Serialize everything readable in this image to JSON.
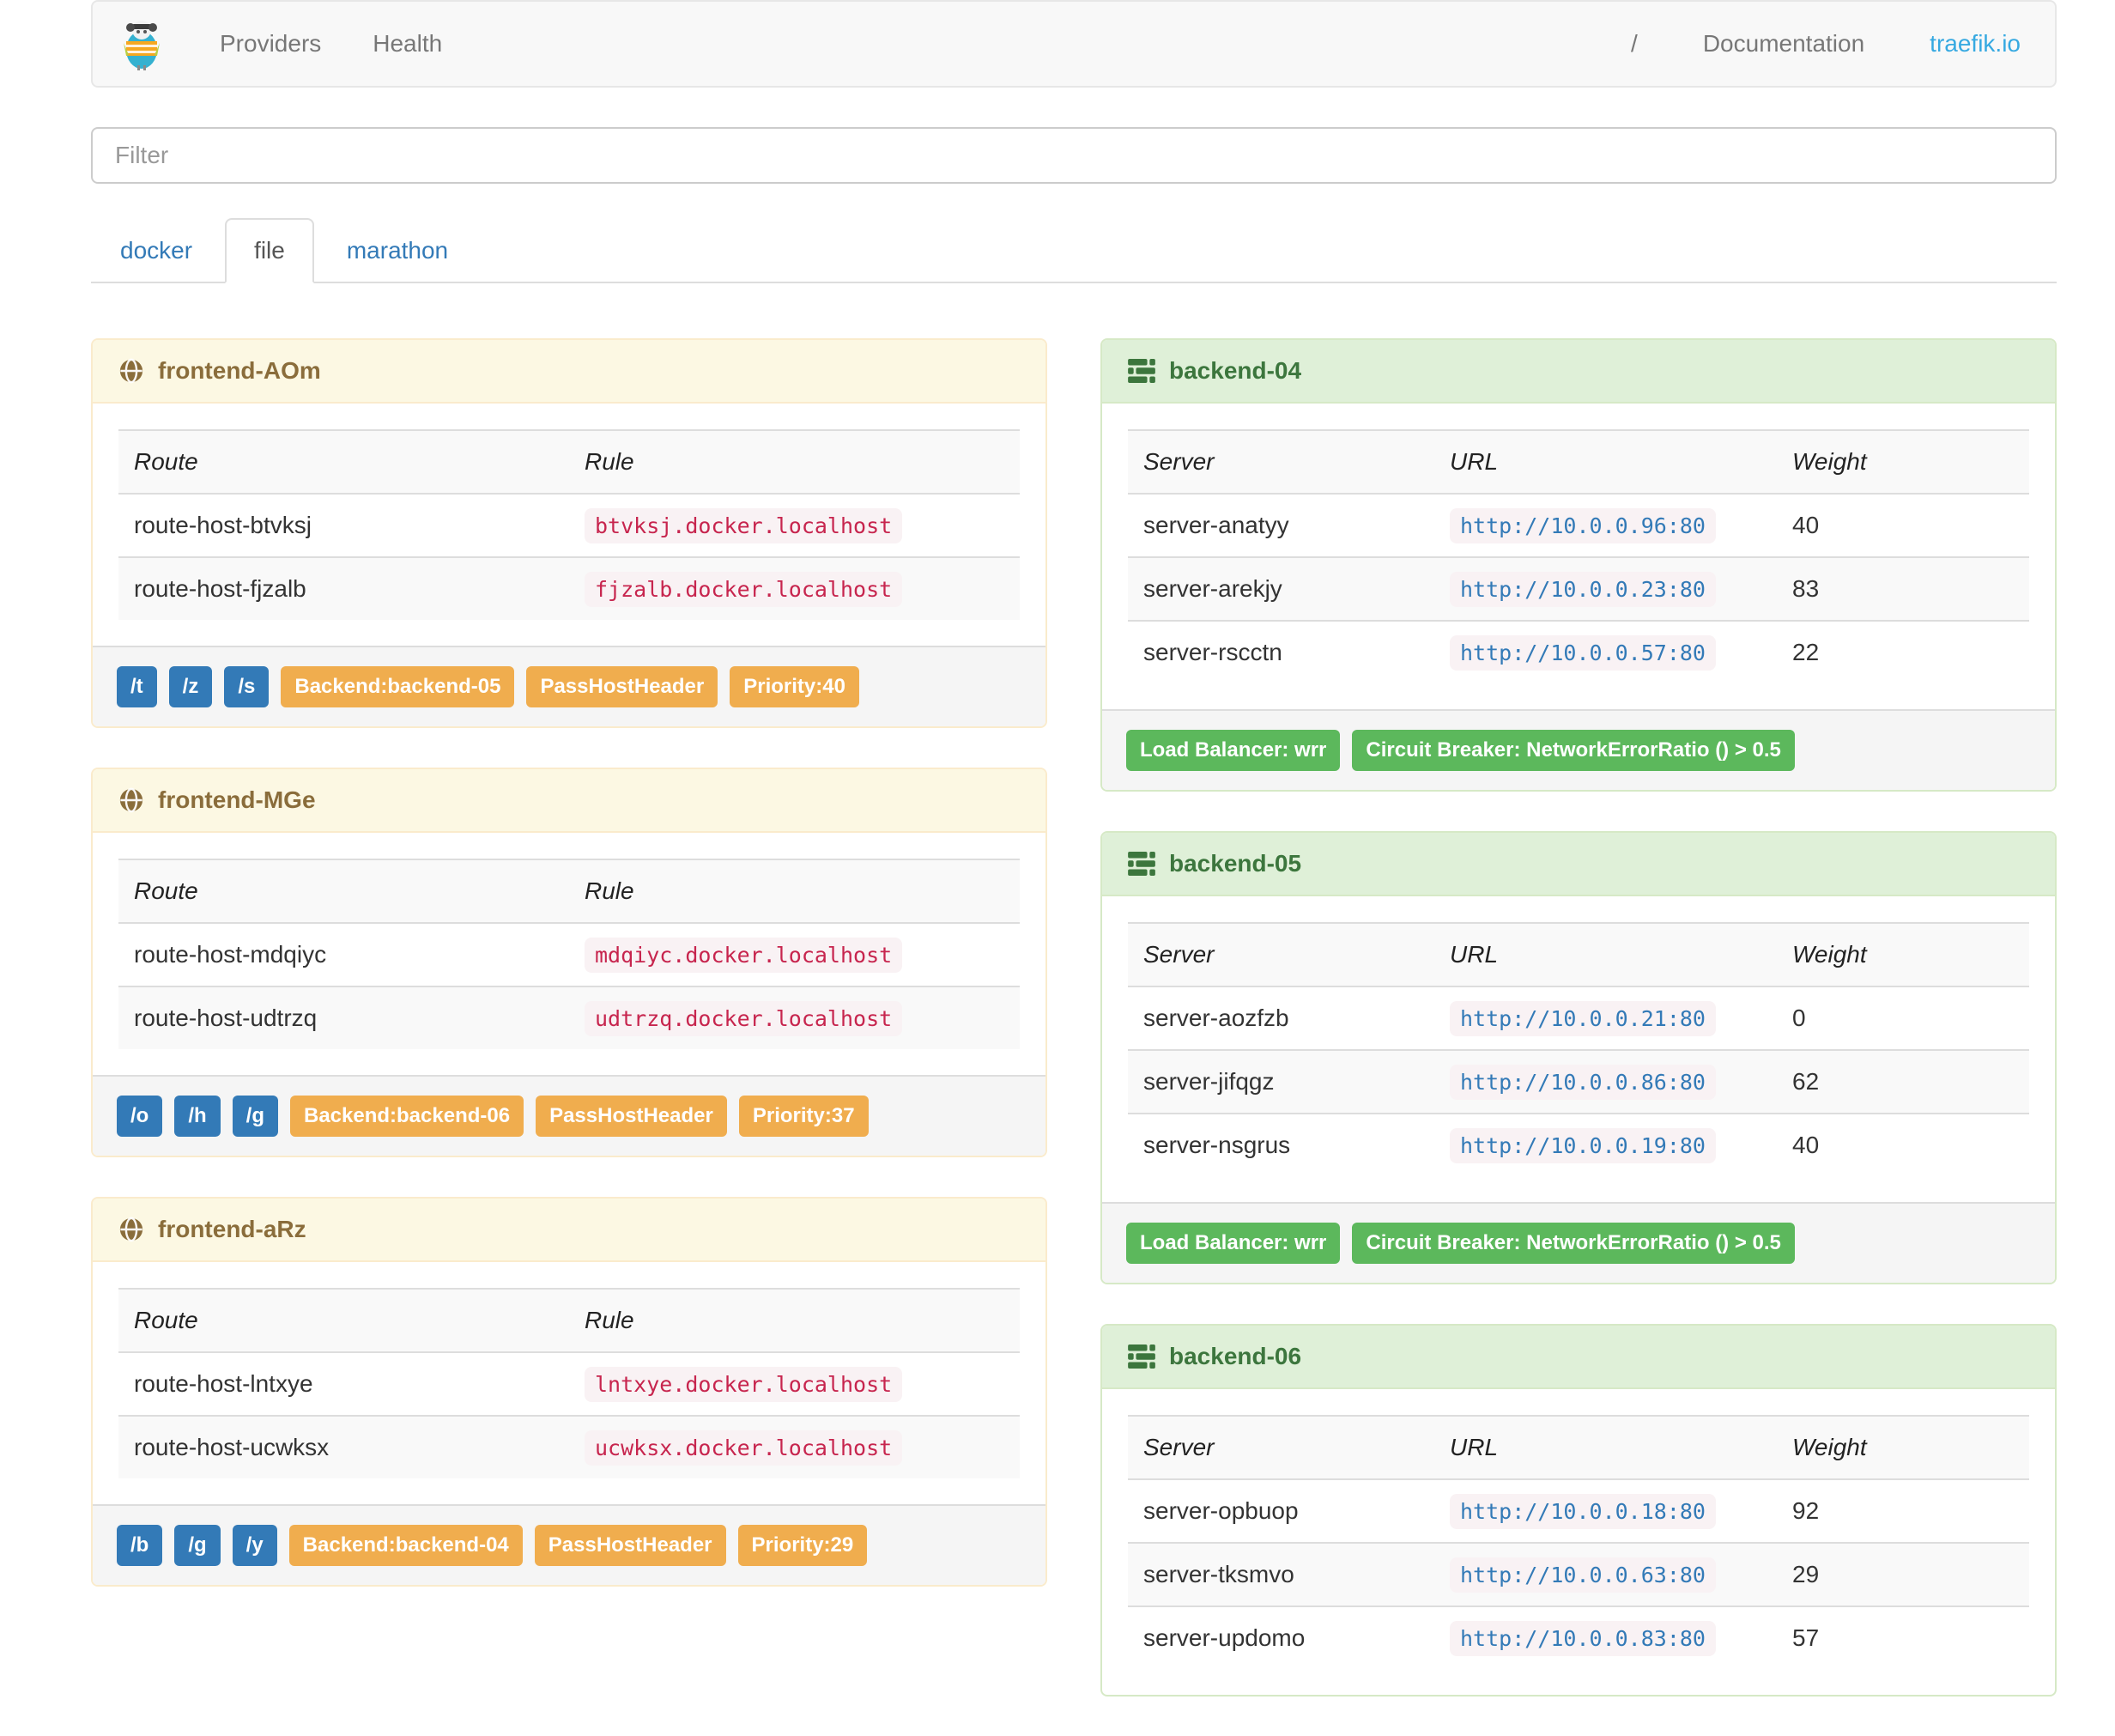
{
  "navbar": {
    "items": [
      {
        "label": "Providers"
      },
      {
        "label": "Health"
      }
    ],
    "separator": "/",
    "documentation_label": "Documentation",
    "brand_site_label": "traefik.io"
  },
  "filter": {
    "placeholder": "Filter"
  },
  "tabs": [
    {
      "label": "docker",
      "active": false
    },
    {
      "label": "file",
      "active": true
    },
    {
      "label": "marathon",
      "active": false
    }
  ],
  "frontend_columns": [
    "Route",
    "Rule"
  ],
  "backend_columns": [
    "Server",
    "URL",
    "Weight"
  ],
  "frontends": [
    {
      "name": "frontend-AOm",
      "routes": [
        {
          "route": "route-host-btvksj",
          "rule": "btvksj.docker.localhost"
        },
        {
          "route": "route-host-fjzalb",
          "rule": "fjzalb.docker.localhost"
        }
      ],
      "entrypoints": [
        "/t",
        "/z",
        "/s"
      ],
      "labels": [
        "Backend:backend-05",
        "PassHostHeader",
        "Priority:40"
      ]
    },
    {
      "name": "frontend-MGe",
      "routes": [
        {
          "route": "route-host-mdqiyc",
          "rule": "mdqiyc.docker.localhost"
        },
        {
          "route": "route-host-udtrzq",
          "rule": "udtrzq.docker.localhost"
        }
      ],
      "entrypoints": [
        "/o",
        "/h",
        "/g"
      ],
      "labels": [
        "Backend:backend-06",
        "PassHostHeader",
        "Priority:37"
      ]
    },
    {
      "name": "frontend-aRz",
      "routes": [
        {
          "route": "route-host-lntxye",
          "rule": "lntxye.docker.localhost"
        },
        {
          "route": "route-host-ucwksx",
          "rule": "ucwksx.docker.localhost"
        }
      ],
      "entrypoints": [
        "/b",
        "/g",
        "/y"
      ],
      "labels": [
        "Backend:backend-04",
        "PassHostHeader",
        "Priority:29"
      ]
    }
  ],
  "backends": [
    {
      "name": "backend-04",
      "servers": [
        {
          "server": "server-anatyy",
          "url": "http://10.0.0.96:80",
          "weight": "40"
        },
        {
          "server": "server-arekjy",
          "url": "http://10.0.0.23:80",
          "weight": "83"
        },
        {
          "server": "server-rscctn",
          "url": "http://10.0.0.57:80",
          "weight": "22"
        }
      ],
      "labels": [
        "Load Balancer: wrr",
        "Circuit Breaker: NetworkErrorRatio () > 0.5"
      ]
    },
    {
      "name": "backend-05",
      "servers": [
        {
          "server": "server-aozfzb",
          "url": "http://10.0.0.21:80",
          "weight": "0"
        },
        {
          "server": "server-jifqgz",
          "url": "http://10.0.0.86:80",
          "weight": "62"
        },
        {
          "server": "server-nsgrus",
          "url": "http://10.0.0.19:80",
          "weight": "40"
        }
      ],
      "labels": [
        "Load Balancer: wrr",
        "Circuit Breaker: NetworkErrorRatio () > 0.5"
      ]
    },
    {
      "name": "backend-06",
      "servers": [
        {
          "server": "server-opbuop",
          "url": "http://10.0.0.18:80",
          "weight": "92"
        },
        {
          "server": "server-tksmvo",
          "url": "http://10.0.0.63:80",
          "weight": "29"
        },
        {
          "server": "server-updomo",
          "url": "http://10.0.0.83:80",
          "weight": "57"
        }
      ],
      "labels": []
    }
  ],
  "colors": {
    "link_blue": "#337ab7",
    "brand_blue": "#36a9e1",
    "warning_text": "#8a6d3b",
    "warning_bg": "#fcf8e3",
    "success_text": "#3c763d",
    "success_bg": "#dff0d8",
    "label_primary": "#337ab7",
    "label_warning": "#f0ad4e",
    "label_success": "#5cb85c",
    "rule_code": "#c7254e"
  }
}
